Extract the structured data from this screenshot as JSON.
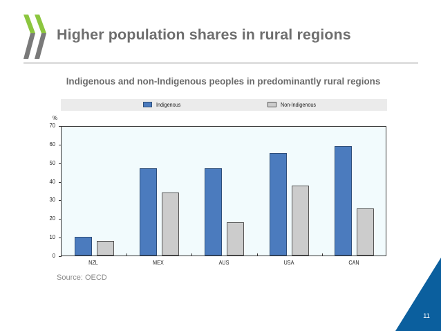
{
  "slide": {
    "title": "Higher population shares in rural regions",
    "source": "Source: OECD",
    "page_number": "11"
  },
  "colors": {
    "indigenous": "#4b7bbe",
    "non_indigenous": "#cccccc",
    "plot_background": "#f2fbfd",
    "logo_green": "#8cc63f",
    "logo_grey": "#7a7a7a",
    "corner_blue": "#0b5f9e"
  },
  "chart_data": {
    "type": "bar",
    "title": "Indigenous and non-Indigenous peoples in predominantly rural regions",
    "xlabel": "",
    "ylabel": "%",
    "ylim": [
      0,
      70
    ],
    "yticks": [
      0,
      10,
      20,
      30,
      40,
      50,
      60,
      70
    ],
    "categories": [
      "NZL",
      "MEX",
      "AUS",
      "USA",
      "CAN"
    ],
    "series": [
      {
        "name": "Indigenous",
        "values": [
          10,
          47,
          47,
          55,
          59
        ]
      },
      {
        "name": "Non-Indigenous",
        "values": [
          8,
          34,
          18,
          37.5,
          25.5
        ]
      }
    ],
    "legend_position": "top",
    "grid": false
  },
  "legend": {
    "items": [
      {
        "label": "Indigenous"
      },
      {
        "label": "Non-Indigenous"
      }
    ]
  },
  "axis": {
    "y_unit": "%",
    "y_labels": [
      "0",
      "10",
      "20",
      "30",
      "40",
      "50",
      "60",
      "70"
    ]
  }
}
